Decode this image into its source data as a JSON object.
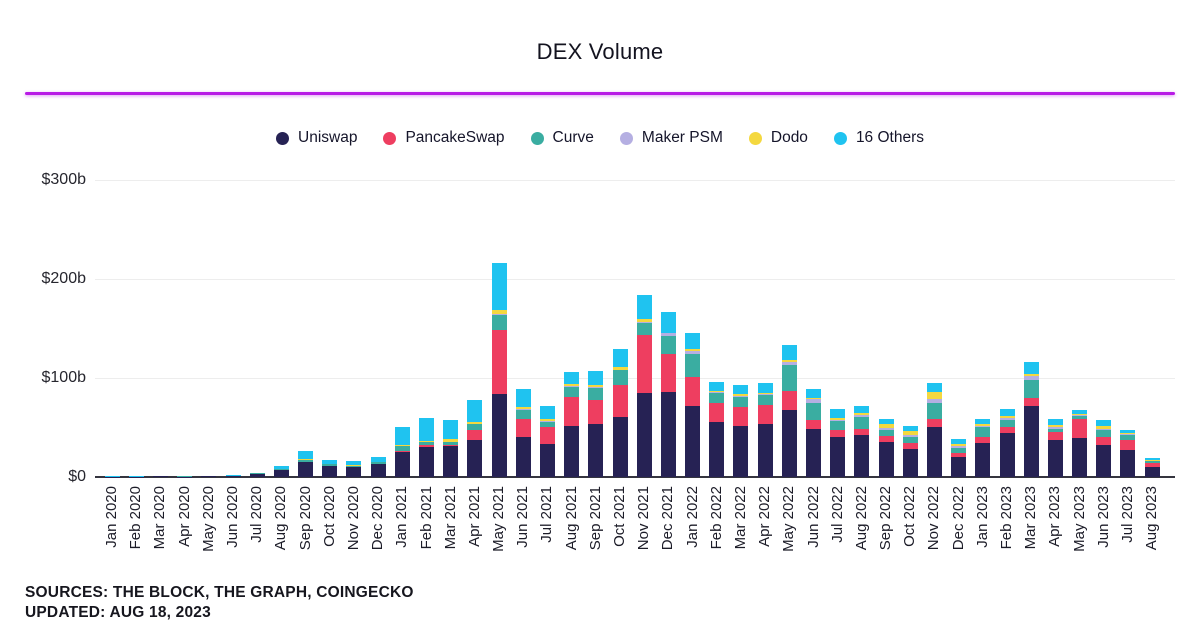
{
  "title": "DEX Volume",
  "accent_line_color": "#b81ae6",
  "y_axis": {
    "ticks": [
      "$300b",
      "$200b",
      "$100b",
      "$0"
    ]
  },
  "footer": {
    "sources": "SOURCES: THE BLOCK, THE GRAPH, COINGECKO",
    "updated": "UPDATED: AUG 18, 2023"
  },
  "chart_data": {
    "type": "bar",
    "stacked": true,
    "unit": "billions USD",
    "ylim": [
      0,
      300
    ],
    "y_ticks": [
      0,
      100,
      200,
      300
    ],
    "grid": true,
    "legend_position": "top",
    "categories": [
      "Jan 2020",
      "Feb 2020",
      "Mar 2020",
      "Apr 2020",
      "May 2020",
      "Jun 2020",
      "Jul 2020",
      "Aug 2020",
      "Sep 2020",
      "Oct 2020",
      "Nov 2020",
      "Dec 2020",
      "Jan 2021",
      "Feb 2021",
      "Mar 2021",
      "Apr 2021",
      "May 2021",
      "Jun 2021",
      "Jul 2021",
      "Aug 2021",
      "Sep 2021",
      "Oct 2021",
      "Nov 2021",
      "Dec 2021",
      "Jan 2022",
      "Feb 2022",
      "Mar 2022",
      "Apr 2022",
      "May 2022",
      "Jun 2022",
      "Jul 2022",
      "Aug 2022",
      "Sep 2022",
      "Oct 2022",
      "Nov 2022",
      "Dec 2022",
      "Jan 2023",
      "Feb 2023",
      "Mar 2023",
      "Apr 2023",
      "May 2023",
      "Jun 2023",
      "Jul 2023",
      "Aug 2023"
    ],
    "series": [
      {
        "name": "Uniswap",
        "color": "#262254",
        "values": [
          0.3,
          0.3,
          0.6,
          0.4,
          0.6,
          0.8,
          3,
          7,
          15,
          11,
          10,
          13,
          25,
          30,
          31,
          37,
          84,
          40,
          33,
          52,
          54,
          61,
          85,
          86,
          72,
          56,
          52,
          54,
          68,
          48,
          40,
          42,
          35,
          28,
          51,
          20,
          34,
          44,
          72,
          37,
          39,
          32,
          27,
          10
        ]
      },
      {
        "name": "PancakeSwap",
        "color": "#ee3e60",
        "values": [
          0,
          0,
          0,
          0,
          0,
          0,
          0,
          0,
          0,
          0.2,
          0.3,
          0.5,
          1,
          2,
          1,
          10,
          65,
          19,
          18,
          29,
          24,
          32,
          58,
          38,
          29,
          19,
          19,
          19,
          19,
          10,
          8,
          7,
          6,
          6,
          8,
          4,
          6,
          7,
          8,
          8,
          20,
          8,
          10,
          4
        ]
      },
      {
        "name": "Curve",
        "color": "#3aada1",
        "values": [
          0.1,
          0.1,
          0.2,
          0.2,
          0.2,
          0.4,
          0.6,
          1.5,
          2.5,
          1.5,
          1.2,
          1.5,
          5,
          3,
          3,
          7,
          15,
          9,
          5,
          10,
          12,
          15,
          13,
          18,
          23,
          10,
          10,
          10,
          26,
          17,
          9,
          12,
          6,
          6,
          16,
          5,
          11,
          7,
          18,
          4,
          3,
          8,
          5,
          2
        ]
      },
      {
        "name": "Maker PSM",
        "color": "#b5afe2",
        "values": [
          0,
          0,
          0,
          0,
          0,
          0,
          0,
          0,
          0,
          0,
          0,
          0,
          0,
          0,
          0,
          0,
          1,
          0.5,
          0.5,
          0.5,
          0.5,
          0.5,
          1,
          3,
          3,
          1,
          1,
          1,
          3,
          4,
          1,
          2,
          3,
          2,
          4,
          2,
          1,
          2,
          4,
          2,
          1,
          1,
          1,
          0.5
        ]
      },
      {
        "name": "Dodo",
        "color": "#f4d83f",
        "values": [
          0,
          0,
          0,
          0,
          0,
          0,
          0,
          0,
          1,
          0.5,
          0.5,
          0.5,
          1,
          1,
          3,
          2,
          4,
          2,
          2,
          2,
          2,
          3,
          3,
          1,
          2,
          1,
          2,
          1,
          2,
          1,
          2,
          2,
          4,
          5,
          7,
          2,
          2,
          2,
          2,
          2,
          1,
          3,
          1,
          0.5
        ]
      },
      {
        "name": "16 Others",
        "color": "#1fc3f0",
        "values": [
          0.2,
          0.2,
          0.4,
          0.3,
          0.4,
          0.5,
          0.8,
          2.5,
          8,
          4.5,
          4,
          4.5,
          19,
          24,
          20,
          22,
          47,
          18,
          13,
          13,
          15,
          18,
          24,
          21,
          17,
          9,
          9,
          10,
          15,
          9,
          9,
          7,
          5,
          5,
          9,
          5,
          5,
          7,
          12,
          6,
          4,
          6,
          4,
          2
        ]
      }
    ]
  }
}
